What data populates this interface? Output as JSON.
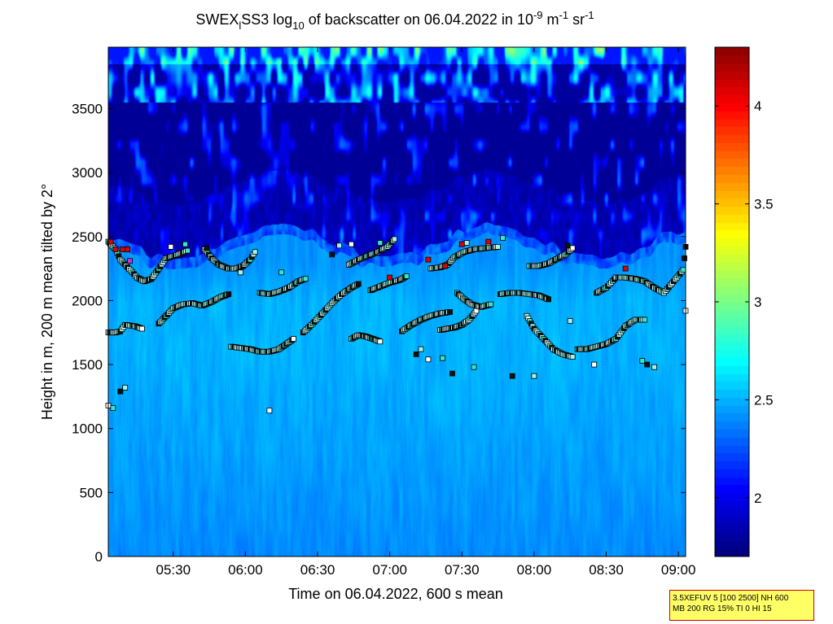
{
  "title": {
    "parts": [
      {
        "text": "SWEX",
        "style": "normal"
      },
      {
        "text": "l",
        "style": "sub"
      },
      {
        "text": "SS3 log",
        "style": "normal"
      },
      {
        "text": "10",
        "style": "sub"
      },
      {
        "text": " of backscatter on 06.04.2022 in 10",
        "style": "normal"
      },
      {
        "text": "-9",
        "style": "sup"
      },
      {
        "text": " m",
        "style": "normal"
      },
      {
        "text": "-1",
        "style": "sup"
      },
      {
        "text": " sr",
        "style": "normal"
      },
      {
        "text": "-1",
        "style": "sup"
      }
    ]
  },
  "info_box": {
    "line1": "3.5XEFUV 5 [100 2500] NH 600",
    "line2": "MB 200 RG 15% TI 0 HI 15"
  },
  "chart_data": {
    "type": "heatmap",
    "xlabel": "Time on 06.04.2022, 600 s mean",
    "ylabel": "Height in m, 200 m mean tilted by 2°",
    "x_range_minutes": [
      303,
      543
    ],
    "y_range_m": [
      0,
      3980
    ],
    "x_ticks": [
      {
        "value": 330,
        "label": "05:30"
      },
      {
        "value": 360,
        "label": "06:00"
      },
      {
        "value": 390,
        "label": "06:30"
      },
      {
        "value": 420,
        "label": "07:00"
      },
      {
        "value": 450,
        "label": "07:30"
      },
      {
        "value": 480,
        "label": "08:00"
      },
      {
        "value": 510,
        "label": "08:30"
      },
      {
        "value": 540,
        "label": "09:00"
      }
    ],
    "y_ticks": [
      0,
      500,
      1000,
      1500,
      2000,
      2500,
      3000,
      3500
    ],
    "colorbar": {
      "range": [
        1.7,
        4.3
      ],
      "ticks": [
        2,
        2.5,
        3,
        3.5,
        4
      ],
      "colormap": "jet"
    },
    "mean_profile": [
      {
        "h": 0,
        "v": 2.38
      },
      {
        "h": 600,
        "v": 2.42
      },
      {
        "h": 1100,
        "v": 2.45
      },
      {
        "h": 1600,
        "v": 2.48
      },
      {
        "h": 2000,
        "v": 2.47
      },
      {
        "h": 2300,
        "v": 2.4
      },
      {
        "h": 2550,
        "v": 1.85
      },
      {
        "h": 3500,
        "v": 1.78
      },
      {
        "h": 3980,
        "v": 2.3
      }
    ],
    "layer_tracks": [
      {
        "name": "low-early",
        "points": [
          [
            303,
            1750
          ],
          [
            306,
            1750
          ],
          [
            308,
            1760
          ],
          [
            310,
            1810
          ],
          [
            314,
            1800
          ],
          [
            317,
            1780
          ]
        ]
      },
      {
        "name": "top-early",
        "points": [
          [
            303,
            2460
          ],
          [
            306,
            2400
          ],
          [
            308,
            2320
          ],
          [
            311,
            2260
          ],
          [
            313,
            2220
          ],
          [
            315,
            2180
          ],
          [
            318,
            2150
          ],
          [
            321,
            2170
          ],
          [
            324,
            2250
          ],
          [
            327,
            2330
          ],
          [
            332,
            2360
          ],
          [
            336,
            2390
          ]
        ]
      },
      {
        "name": "mid-early",
        "points": [
          [
            324,
            1820
          ],
          [
            327,
            1880
          ],
          [
            330,
            1940
          ],
          [
            334,
            1970
          ],
          [
            338,
            1980
          ],
          [
            342,
            1960
          ],
          [
            346,
            1990
          ],
          [
            350,
            2030
          ],
          [
            353,
            2050
          ]
        ]
      },
      {
        "name": "bowl-0545",
        "points": [
          [
            343,
            2400
          ],
          [
            346,
            2330
          ],
          [
            349,
            2280
          ],
          [
            353,
            2250
          ],
          [
            356,
            2250
          ],
          [
            359,
            2270
          ],
          [
            362,
            2320
          ],
          [
            364,
            2380
          ]
        ]
      },
      {
        "name": "low-0600",
        "points": [
          [
            354,
            1640
          ],
          [
            358,
            1630
          ],
          [
            362,
            1620
          ],
          [
            366,
            1600
          ],
          [
            370,
            1600
          ],
          [
            374,
            1620
          ],
          [
            377,
            1660
          ],
          [
            380,
            1700
          ]
        ]
      },
      {
        "name": "mid-0610",
        "points": [
          [
            366,
            2060
          ],
          [
            370,
            2050
          ],
          [
            374,
            2070
          ],
          [
            378,
            2100
          ],
          [
            382,
            2150
          ],
          [
            385,
            2170
          ]
        ]
      },
      {
        "name": "rise-0630",
        "points": [
          [
            384,
            1750
          ],
          [
            388,
            1820
          ],
          [
            392,
            1900
          ],
          [
            396,
            1980
          ],
          [
            400,
            2050
          ],
          [
            404,
            2100
          ],
          [
            407,
            2130
          ]
        ]
      },
      {
        "name": "top-0645",
        "points": [
          [
            403,
            2280
          ],
          [
            407,
            2320
          ],
          [
            411,
            2350
          ],
          [
            415,
            2380
          ],
          [
            419,
            2420
          ],
          [
            422,
            2480
          ]
        ]
      },
      {
        "name": "dip-0650",
        "points": [
          [
            404,
            1700
          ],
          [
            407,
            1730
          ],
          [
            410,
            1720
          ],
          [
            413,
            1700
          ],
          [
            416,
            1680
          ]
        ]
      },
      {
        "name": "mid-0700",
        "points": [
          [
            412,
            2080
          ],
          [
            416,
            2110
          ],
          [
            420,
            2140
          ],
          [
            424,
            2160
          ],
          [
            427,
            2190
          ]
        ]
      },
      {
        "name": "ramp-0705",
        "points": [
          [
            425,
            1760
          ],
          [
            429,
            1810
          ],
          [
            433,
            1850
          ],
          [
            437,
            1880
          ],
          [
            441,
            1900
          ],
          [
            445,
            1910
          ]
        ]
      },
      {
        "name": "top-0725",
        "points": [
          [
            437,
            2250
          ],
          [
            441,
            2260
          ],
          [
            444,
            2280
          ],
          [
            447,
            2340
          ],
          [
            451,
            2380
          ],
          [
            455,
            2400
          ],
          [
            460,
            2410
          ],
          [
            465,
            2420
          ]
        ]
      },
      {
        "name": "low-0725",
        "points": [
          [
            441,
            1770
          ],
          [
            444,
            1780
          ],
          [
            447,
            1790
          ],
          [
            450,
            1810
          ],
          [
            453,
            1850
          ],
          [
            456,
            1920
          ]
        ]
      },
      {
        "name": "mid-0735",
        "points": [
          [
            448,
            2060
          ],
          [
            451,
            2010
          ],
          [
            454,
            1970
          ],
          [
            458,
            1950
          ],
          [
            462,
            1970
          ]
        ]
      },
      {
        "name": "mid-0800",
        "points": [
          [
            466,
            2050
          ],
          [
            470,
            2060
          ],
          [
            474,
            2060
          ],
          [
            478,
            2050
          ],
          [
            482,
            2040
          ],
          [
            486,
            2010
          ]
        ]
      },
      {
        "name": "dip-0805",
        "points": [
          [
            477,
            1880
          ],
          [
            480,
            1780
          ],
          [
            484,
            1700
          ],
          [
            488,
            1620
          ],
          [
            492,
            1580
          ],
          [
            496,
            1560
          ]
        ]
      },
      {
        "name": "top-0805",
        "points": [
          [
            478,
            2270
          ],
          [
            482,
            2270
          ],
          [
            486,
            2290
          ],
          [
            490,
            2330
          ],
          [
            493,
            2360
          ],
          [
            496,
            2410
          ]
        ]
      },
      {
        "name": "low-0825",
        "points": [
          [
            498,
            1620
          ],
          [
            502,
            1620
          ],
          [
            506,
            1640
          ],
          [
            510,
            1660
          ],
          [
            514,
            1700
          ],
          [
            518,
            1800
          ],
          [
            522,
            1850
          ],
          [
            526,
            1850
          ]
        ]
      },
      {
        "name": "top-0830",
        "points": [
          [
            506,
            2060
          ],
          [
            510,
            2100
          ],
          [
            514,
            2180
          ],
          [
            518,
            2180
          ],
          [
            522,
            2170
          ],
          [
            526,
            2150
          ],
          [
            530,
            2100
          ],
          [
            534,
            2060
          ],
          [
            538,
            2150
          ],
          [
            542,
            2240
          ],
          [
            543,
            2420
          ]
        ]
      }
    ],
    "scatter_points": [
      [
        303,
        1180
      ],
      [
        305,
        1160
      ],
      [
        308,
        1290
      ],
      [
        310,
        1320
      ],
      [
        329,
        2420
      ],
      [
        335,
        2440
      ],
      [
        344,
        2410
      ],
      [
        358,
        2220
      ],
      [
        370,
        1140
      ],
      [
        375,
        2220
      ],
      [
        396,
        2360
      ],
      [
        399,
        2430
      ],
      [
        404,
        2440
      ],
      [
        416,
        2450
      ],
      [
        431,
        1580
      ],
      [
        433,
        1620
      ],
      [
        436,
        1540
      ],
      [
        442,
        1550
      ],
      [
        446,
        1430
      ],
      [
        452,
        2450
      ],
      [
        461,
        2450
      ],
      [
        467,
        2490
      ],
      [
        494,
        2430
      ],
      [
        495,
        1840
      ],
      [
        505,
        1500
      ],
      [
        525,
        1530
      ],
      [
        527,
        1500
      ],
      [
        530,
        1480
      ],
      [
        543,
        1920
      ],
      [
        455,
        1480
      ],
      [
        471,
        1410
      ],
      [
        480,
        1410
      ]
    ],
    "highlight_points": [
      {
        "x": 304,
        "y": 2460,
        "color": "#dd0000"
      },
      {
        "x": 306,
        "y": 2400,
        "color": "#dd0000"
      },
      {
        "x": 309,
        "y": 2400,
        "color": "#dd0000"
      },
      {
        "x": 311,
        "y": 2400,
        "color": "#dd0000"
      },
      {
        "x": 312,
        "y": 2310,
        "color": "#cc33cc"
      },
      {
        "x": 420,
        "y": 2180,
        "color": "#dd0000"
      },
      {
        "x": 436,
        "y": 2320,
        "color": "#dd0000"
      },
      {
        "x": 443,
        "y": 2270,
        "color": "#dd0000"
      },
      {
        "x": 450,
        "y": 2440,
        "color": "#dd0000"
      },
      {
        "x": 461,
        "y": 2460,
        "color": "#dd0000"
      },
      {
        "x": 518,
        "y": 2250,
        "color": "#dd0000"
      }
    ]
  }
}
